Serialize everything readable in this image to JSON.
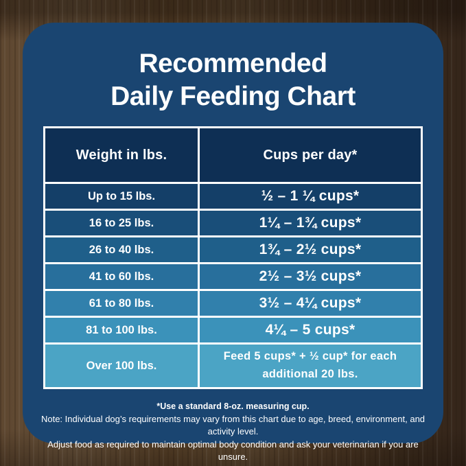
{
  "card": {
    "title_line1": "Recommended",
    "title_line2": "Daily Feeding Chart"
  },
  "colors": {
    "card_background": "#1a4571",
    "table_border": "#ffffff",
    "text": "#ffffff",
    "wood_brown": "#58422c"
  },
  "table": {
    "header_bg": "#0e2f54",
    "headers": [
      "Weight in lbs.",
      "Cups per day*"
    ],
    "rows": [
      {
        "weight": "Up to 15 lbs.",
        "cups": "½ – 1 ¼ cups*",
        "bg": "#143f68"
      },
      {
        "weight": "16 to 25 lbs.",
        "cups": "1¼ – 1¾  cups*",
        "bg": "#194e79"
      },
      {
        "weight": "26 to 40 lbs.",
        "cups": "1¾ – 2½ cups*",
        "bg": "#1f5f8a"
      },
      {
        "weight": "41 to 60 lbs.",
        "cups": "2½ – 3½ cups*",
        "bg": "#286f9c"
      },
      {
        "weight": "61 to 80 lbs.",
        "cups": "3½ – 4¼ cups*",
        "bg": "#3180ac"
      },
      {
        "weight": "81 to 100 lbs.",
        "cups": "4¼ – 5 cups*",
        "bg": "#3b92ba"
      },
      {
        "weight": "Over 100 lbs.",
        "cups": "Feed 5 cups* + ½ cup* for each additional 20 lbs.",
        "bg": "#4ba4c5"
      }
    ]
  },
  "footer": {
    "cup_note": "*Use a standard 8-oz. measuring cup.",
    "note_line1": "Note: Individual dog’s requirements may vary from this chart due to age, breed, environment, and activity level.",
    "note_line2": "Adjust food as required to maintain optimal body condition and ask your veterinarian if you are unsure."
  },
  "chart_data": {
    "type": "table",
    "title": "Recommended Daily Feeding Chart",
    "columns": [
      "Weight in lbs.",
      "Cups per day*"
    ],
    "rows": [
      [
        "Up to 15 lbs.",
        "½ – 1 ¼ cups*"
      ],
      [
        "16 to 25 lbs.",
        "1¼ – 1¾ cups*"
      ],
      [
        "26 to 40 lbs.",
        "1¾ – 2½ cups*"
      ],
      [
        "41 to 60 lbs.",
        "2½ – 3½ cups*"
      ],
      [
        "61 to 80 lbs.",
        "3½ – 4¼ cups*"
      ],
      [
        "81 to 100 lbs.",
        "4¼ – 5 cups*"
      ],
      [
        "Over 100 lbs.",
        "Feed 5 cups* + ½ cup* for each additional 20 lbs."
      ]
    ],
    "footnotes": [
      "*Use a standard 8-oz. measuring cup.",
      "Note: Individual dog’s requirements may vary from this chart due to age, breed, environment, and activity level.",
      "Adjust food as required to maintain optimal body condition and ask your veterinarian if you are unsure."
    ],
    "layout": {
      "row_color_gradient": [
        "#143f68",
        "#4ba4c5"
      ],
      "header_color": "#0e2f54"
    }
  }
}
